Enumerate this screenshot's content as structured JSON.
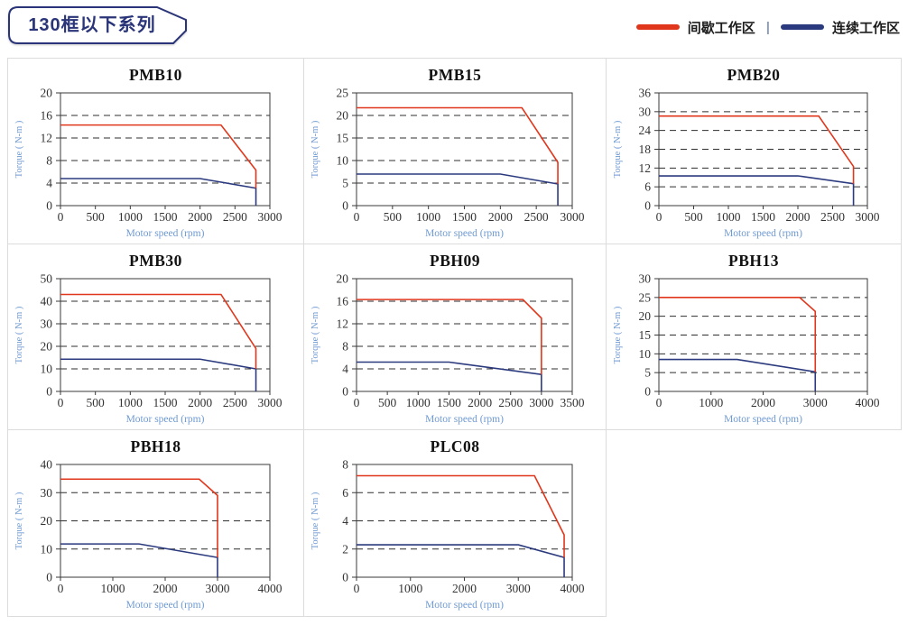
{
  "header": {
    "badge_text": "130框以下系列",
    "badge_color": "#2a3478"
  },
  "legend": {
    "separator": "|",
    "items": [
      {
        "label": "间歇工作区",
        "color": "#e0371c"
      },
      {
        "label": "连续工作区",
        "color": "#2b3a7e"
      }
    ]
  },
  "chart_data": [
    {
      "type": "line",
      "title": "PMB10",
      "xlabel": "Motor speed (rpm)",
      "ylabel": "Torque ( N-m )",
      "xlim": [
        0,
        3000
      ],
      "ylim": [
        0,
        20
      ],
      "xticks": [
        0,
        500,
        1000,
        1500,
        2000,
        2500,
        3000
      ],
      "yticks": [
        0,
        4,
        8,
        12,
        16,
        20
      ],
      "grid": "dashed-horizontal",
      "series": [
        {
          "name": "间歇工作区",
          "color": "#e0371c",
          "points": [
            [
              0,
              14.3
            ],
            [
              2300,
              14.3
            ],
            [
              2800,
              6.3
            ],
            [
              2800,
              3.1
            ]
          ]
        },
        {
          "name": "连续工作区",
          "color": "#2b3a7e",
          "points": [
            [
              0,
              4.8
            ],
            [
              2000,
              4.8
            ],
            [
              2800,
              3.1
            ],
            [
              2800,
              0
            ]
          ]
        }
      ]
    },
    {
      "type": "line",
      "title": "PMB15",
      "xlabel": "Motor speed (rpm)",
      "ylabel": "Torque ( N-m )",
      "xlim": [
        0,
        3000
      ],
      "ylim": [
        0,
        25
      ],
      "xticks": [
        0,
        500,
        1000,
        1500,
        2000,
        2500,
        3000
      ],
      "yticks": [
        0,
        5,
        10,
        15,
        20,
        25
      ],
      "grid": "dashed-horizontal",
      "series": [
        {
          "name": "间歇工作区",
          "color": "#e0371c",
          "points": [
            [
              0,
              21.7
            ],
            [
              2300,
              21.7
            ],
            [
              2800,
              9.6
            ],
            [
              2800,
              4.8
            ]
          ]
        },
        {
          "name": "连续工作区",
          "color": "#2b3a7e",
          "points": [
            [
              0,
              7
            ],
            [
              2000,
              7
            ],
            [
              2800,
              4.8
            ],
            [
              2800,
              0
            ]
          ]
        }
      ]
    },
    {
      "type": "line",
      "title": "PMB20",
      "xlabel": "Motor speed (rpm)",
      "ylabel": "Torque ( N-m )",
      "xlim": [
        0,
        3000
      ],
      "ylim": [
        0,
        36
      ],
      "xticks": [
        0,
        500,
        1000,
        1500,
        2000,
        2500,
        3000
      ],
      "yticks": [
        0,
        6,
        12,
        18,
        24,
        30,
        36
      ],
      "grid": "dashed-horizontal",
      "series": [
        {
          "name": "间歇工作区",
          "color": "#e0371c",
          "points": [
            [
              0,
              28.6
            ],
            [
              2300,
              28.6
            ],
            [
              2800,
              12.5
            ],
            [
              2800,
              7
            ]
          ]
        },
        {
          "name": "连续工作区",
          "color": "#2b3a7e",
          "points": [
            [
              0,
              9.5
            ],
            [
              2000,
              9.5
            ],
            [
              2800,
              7
            ],
            [
              2800,
              0
            ]
          ]
        }
      ]
    },
    {
      "type": "line",
      "title": "PMB30",
      "xlabel": "Motor speed (rpm)",
      "ylabel": "Torque ( N-m )",
      "xlim": [
        0,
        3000
      ],
      "ylim": [
        0,
        50
      ],
      "xticks": [
        0,
        500,
        1000,
        1500,
        2000,
        2500,
        3000
      ],
      "yticks": [
        0,
        10,
        20,
        30,
        40,
        50
      ],
      "grid": "dashed-horizontal",
      "series": [
        {
          "name": "间歇工作区",
          "color": "#e0371c",
          "points": [
            [
              0,
              43
            ],
            [
              2300,
              43
            ],
            [
              2800,
              19
            ],
            [
              2800,
              10
            ]
          ]
        },
        {
          "name": "连续工作区",
          "color": "#2b3a7e",
          "points": [
            [
              0,
              14.3
            ],
            [
              2000,
              14.3
            ],
            [
              2800,
              10
            ],
            [
              2800,
              0
            ]
          ]
        }
      ]
    },
    {
      "type": "line",
      "title": "PBH09",
      "xlabel": "Motor speed (rpm)",
      "ylabel": "Torque ( N-m )",
      "xlim": [
        0,
        3500
      ],
      "ylim": [
        0,
        20
      ],
      "xticks": [
        0,
        500,
        1000,
        1500,
        2000,
        2500,
        3000,
        3500
      ],
      "yticks": [
        0,
        4,
        8,
        12,
        16,
        20
      ],
      "grid": "dashed-horizontal",
      "series": [
        {
          "name": "间歇工作区",
          "color": "#e0371c",
          "points": [
            [
              0,
              16.3
            ],
            [
              2700,
              16.3
            ],
            [
              3000,
              13
            ],
            [
              3000,
              3
            ]
          ]
        },
        {
          "name": "连续工作区",
          "color": "#2b3a7e",
          "points": [
            [
              0,
              5.2
            ],
            [
              1500,
              5.2
            ],
            [
              3000,
              3
            ],
            [
              3000,
              0
            ]
          ]
        }
      ]
    },
    {
      "type": "line",
      "title": "PBH13",
      "xlabel": "Motor speed (rpm)",
      "ylabel": "Torque ( N-m )",
      "xlim": [
        0,
        4000
      ],
      "ylim": [
        0,
        30
      ],
      "xticks": [
        0,
        1000,
        2000,
        3000,
        4000
      ],
      "yticks": [
        0,
        5,
        10,
        15,
        20,
        25,
        30
      ],
      "grid": "dashed-horizontal",
      "series": [
        {
          "name": "间歇工作区",
          "color": "#e0371c",
          "points": [
            [
              0,
              25
            ],
            [
              2700,
              25
            ],
            [
              3000,
              21.3
            ],
            [
              3000,
              5.2
            ]
          ]
        },
        {
          "name": "连续工作区",
          "color": "#2b3a7e",
          "points": [
            [
              0,
              8.5
            ],
            [
              1500,
              8.5
            ],
            [
              3000,
              5.2
            ],
            [
              3000,
              0
            ]
          ]
        }
      ]
    },
    {
      "type": "line",
      "title": "PBH18",
      "xlabel": "Motor speed (rpm)",
      "ylabel": "Torque ( N-m )",
      "xlim": [
        0,
        4000
      ],
      "ylim": [
        0,
        40
      ],
      "xticks": [
        0,
        1000,
        2000,
        3000,
        4000
      ],
      "yticks": [
        0,
        10,
        20,
        30,
        40
      ],
      "grid": "dashed-horizontal",
      "series": [
        {
          "name": "间歇工作区",
          "color": "#e0371c",
          "points": [
            [
              0,
              34.8
            ],
            [
              2650,
              34.8
            ],
            [
              3000,
              29
            ],
            [
              3000,
              7
            ]
          ]
        },
        {
          "name": "连续工作区",
          "color": "#2b3a7e",
          "points": [
            [
              0,
              11.8
            ],
            [
              1500,
              11.8
            ],
            [
              3000,
              7
            ],
            [
              3000,
              0
            ]
          ]
        }
      ]
    },
    {
      "type": "line",
      "title": "PLC08",
      "xlabel": "Motor speed (rpm)",
      "ylabel": "Torque ( N-m )",
      "xlim": [
        0,
        4000
      ],
      "ylim": [
        0,
        8
      ],
      "xticks": [
        0,
        1000,
        2000,
        3000,
        4000
      ],
      "yticks": [
        0,
        2,
        4,
        6,
        8
      ],
      "grid": "dashed-horizontal",
      "series": [
        {
          "name": "间歇工作区",
          "color": "#e0371c",
          "points": [
            [
              0,
              7.2
            ],
            [
              3300,
              7.2
            ],
            [
              3850,
              3
            ],
            [
              3850,
              1.4
            ]
          ]
        },
        {
          "name": "连续工作区",
          "color": "#2b3a7e",
          "points": [
            [
              0,
              2.3
            ],
            [
              3000,
              2.3
            ],
            [
              3850,
              1.4
            ],
            [
              3850,
              0
            ]
          ]
        }
      ]
    }
  ]
}
